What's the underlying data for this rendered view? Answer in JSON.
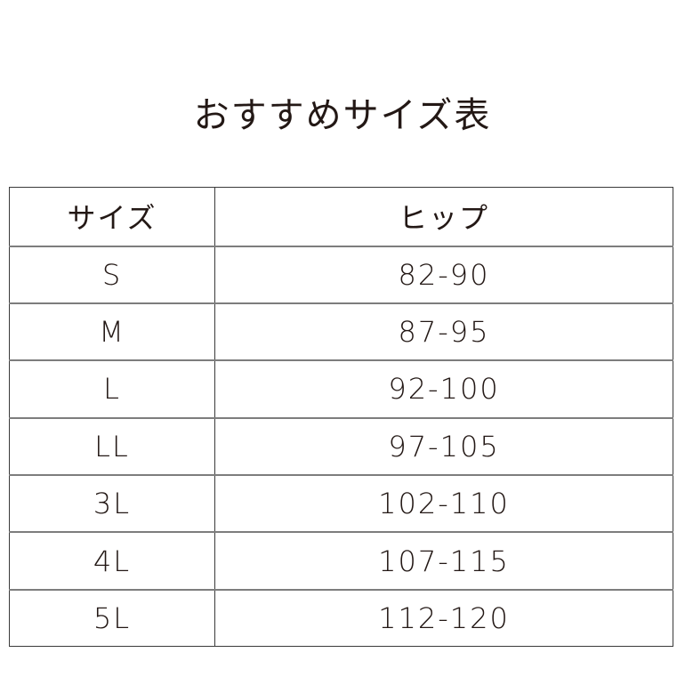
{
  "title": "おすすめサイズ表",
  "table": {
    "headers": [
      "サイズ",
      "ヒップ"
    ],
    "rows": [
      [
        "S",
        "82-90"
      ],
      [
        "M",
        "87-95"
      ],
      [
        "L",
        "92-100"
      ],
      [
        "LL",
        "97-105"
      ],
      [
        "3L",
        "102-110"
      ],
      [
        "4L",
        "107-115"
      ],
      [
        "5L",
        "112-120"
      ]
    ]
  }
}
